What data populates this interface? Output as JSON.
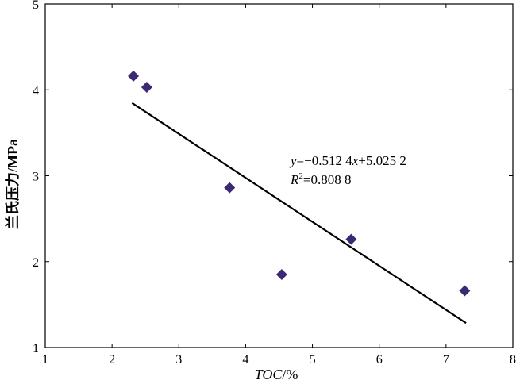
{
  "chart_data": {
    "type": "scatter",
    "xlabel_italic": "TOC",
    "xlabel_suffix": "/%",
    "ylabel": "兰氏压力/MPa",
    "xlim": [
      1,
      8
    ],
    "ylim": [
      1,
      5
    ],
    "x_ticks": [
      "1",
      "2",
      "3",
      "4",
      "5",
      "6",
      "7",
      "8"
    ],
    "y_ticks": [
      "1",
      "2",
      "3",
      "4",
      "5"
    ],
    "points": [
      {
        "x": 2.32,
        "y": 4.16
      },
      {
        "x": 2.52,
        "y": 4.03
      },
      {
        "x": 3.76,
        "y": 2.86
      },
      {
        "x": 4.54,
        "y": 1.85
      },
      {
        "x": 5.58,
        "y": 2.26
      },
      {
        "x": 7.28,
        "y": 1.66
      }
    ],
    "trendline": {
      "slope": -0.5124,
      "intercept": 5.0252,
      "x_range": [
        2.3,
        7.3
      ]
    },
    "equation": {
      "line1_var": "y",
      "line1_mid": "=−0.512 4",
      "line1_var2": "x",
      "line1_end": "+5.025 2",
      "line2_var": "R",
      "line2_sup": "2",
      "line2_end": "=0.808 8"
    },
    "marker_color": "#3b2a73",
    "line_color": "#000000"
  }
}
